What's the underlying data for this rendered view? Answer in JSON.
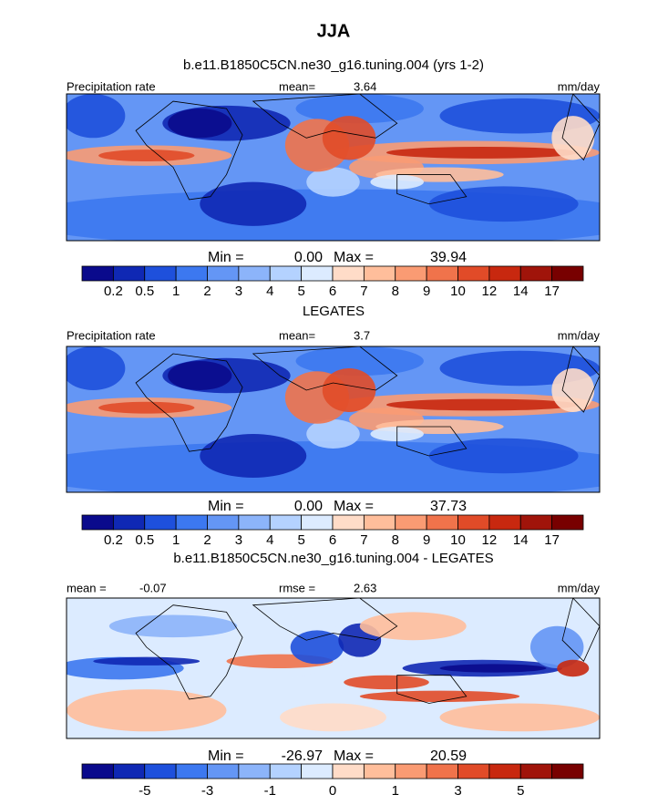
{
  "title": "JJA",
  "chart_data": [
    {
      "type": "map",
      "title": "b.e11.B1850C5CN.ne30_g16.tuning.004 (yrs 1-2)",
      "left_text": "Precipitation rate",
      "center_label": "mean=",
      "center_value": 3.64,
      "units": "mm/day",
      "min_label": "Min =",
      "min": {
        "value": 0,
        "label": "0.00"
      },
      "max_label": "Max =",
      "max": 39.94,
      "colors": [
        "#0a0a8c",
        "#0f28b4",
        "#1e50dc",
        "#3c78f0",
        "#6496f5",
        "#8cb4fa",
        "#b4d2ff",
        "#dcebff",
        "#ffdcc8",
        "#ffbe9b",
        "#fa9b73",
        "#f0734b",
        "#e14b28",
        "#c8280f",
        "#a0140a",
        "#780000"
      ],
      "levels": [
        0.2,
        0.5,
        1,
        2,
        3,
        4,
        5,
        6,
        7,
        8,
        9,
        10,
        12,
        14,
        17
      ]
    },
    {
      "type": "map",
      "title": "LEGATES",
      "left_text": "Precipitation rate",
      "center_label": "mean=",
      "center_value": 3.7,
      "units": "mm/day",
      "min_label": "Min =",
      "min": {
        "value": 0,
        "label": "0.00"
      },
      "max_label": "Max =",
      "max": 37.73,
      "colors": [
        "#0a0a8c",
        "#0f28b4",
        "#1e50dc",
        "#3c78f0",
        "#6496f5",
        "#8cb4fa",
        "#b4d2ff",
        "#dcebff",
        "#ffdcc8",
        "#ffbe9b",
        "#fa9b73",
        "#f0734b",
        "#e14b28",
        "#c8280f",
        "#a0140a",
        "#780000"
      ],
      "levels": [
        0.2,
        0.5,
        1,
        2,
        3,
        4,
        5,
        6,
        7,
        8,
        9,
        10,
        12,
        14,
        17
      ]
    },
    {
      "type": "map",
      "title": "b.e11.B1850C5CN.ne30_g16.tuning.004 - LEGATES",
      "left_label": "mean =",
      "left_value": -0.07,
      "center_label": "rmse =",
      "center_value": 2.63,
      "units": "mm/day",
      "min_label": "Min =",
      "min": -26.97,
      "max_label": "Max =",
      "max": 20.59,
      "colors": [
        "#0a0a8c",
        "#0f28b4",
        "#1e50dc",
        "#3c78f0",
        "#6496f5",
        "#8cb4fa",
        "#b4d2ff",
        "#dcebff",
        "#ffdcc8",
        "#ffbe9b",
        "#fa9b73",
        "#f0734b",
        "#e14b28",
        "#c8280f",
        "#a0140a",
        "#780000"
      ],
      "levels": [
        null,
        -5,
        null,
        -3,
        null,
        -1,
        null,
        0,
        null,
        1,
        null,
        3,
        null,
        5,
        null
      ]
    }
  ]
}
